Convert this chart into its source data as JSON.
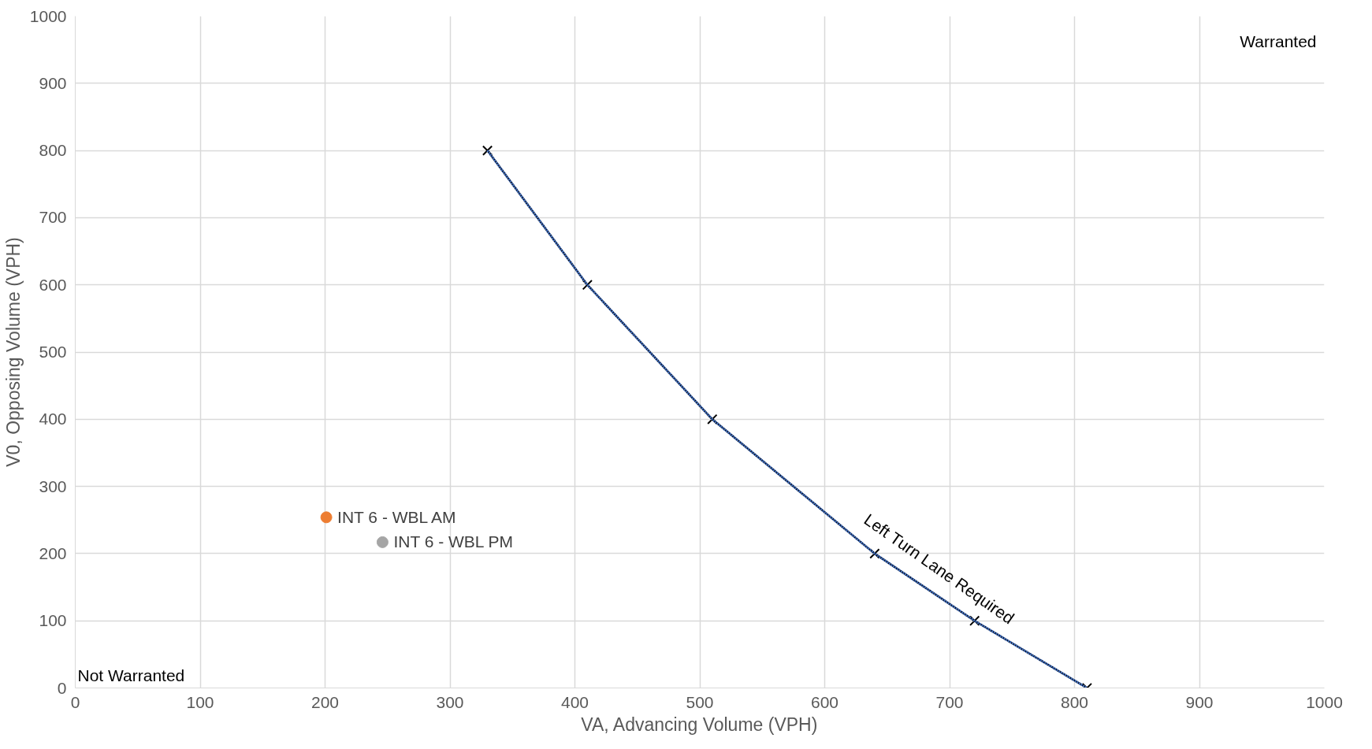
{
  "chart_data": {
    "type": "scatter",
    "xlabel": "VA, Advancing Volume (VPH)",
    "ylabel": "V0, Opposing Volume (VPH)",
    "xlim": [
      0,
      1000
    ],
    "ylim": [
      0,
      1000
    ],
    "xticks": [
      0,
      100,
      200,
      300,
      400,
      500,
      600,
      700,
      800,
      900,
      1000
    ],
    "yticks": [
      0,
      100,
      200,
      300,
      400,
      500,
      600,
      700,
      800,
      900,
      1000
    ],
    "grid": true,
    "legend": false,
    "series": [
      {
        "type": "line",
        "color": "#000000",
        "line_style": "solid",
        "marker": "cross",
        "x": [
          330,
          410,
          510,
          640,
          720,
          810
        ],
        "values": [
          800,
          600,
          400,
          200,
          100,
          0
        ]
      },
      {
        "type": "line",
        "color": "#4472c4",
        "line_style": "dotted",
        "marker": "none",
        "x": [
          330,
          410,
          510,
          640,
          720,
          810
        ],
        "values": [
          800,
          600,
          400,
          200,
          100,
          0
        ]
      },
      {
        "name": "INT 6 - WBL AM",
        "color": "#ed7d31",
        "marker": "circle",
        "x": [
          201
        ],
        "values": [
          254
        ]
      },
      {
        "name": "INT 6 - WBL PM",
        "color": "#a5a5a5",
        "marker": "circle",
        "x": [
          246
        ],
        "values": [
          217
        ]
      }
    ],
    "annotations": [
      "Warranted",
      "Not Warranted",
      "Left Turn Lane Required"
    ]
  }
}
